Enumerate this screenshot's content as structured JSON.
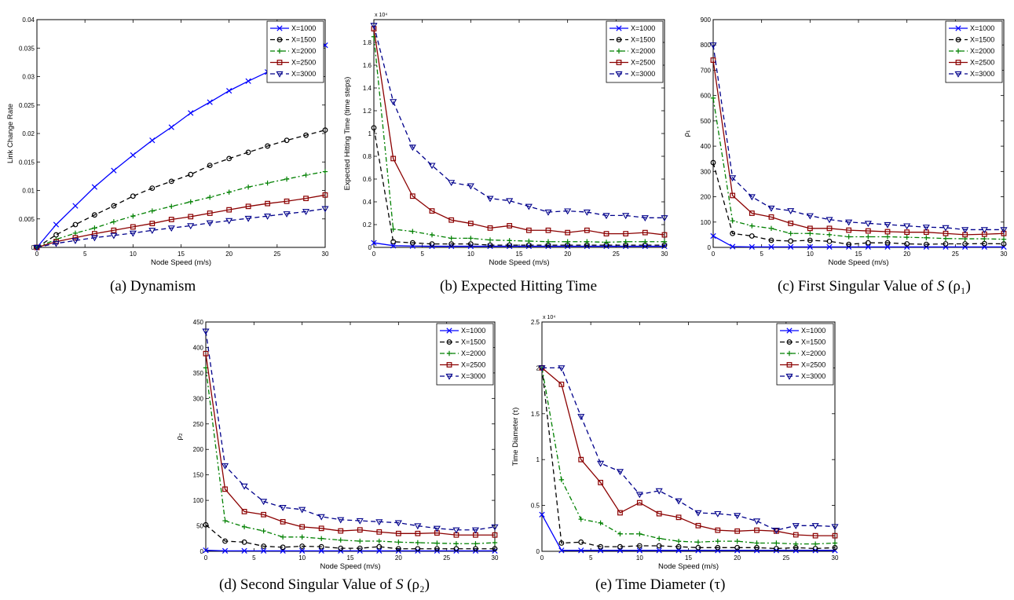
{
  "legend_labels": [
    "X=1000",
    "X=1500",
    "X=2000",
    "X=2500",
    "X=3000"
  ],
  "series_styles": [
    {
      "color": "#0000ff",
      "dash": "solid",
      "marker": "x"
    },
    {
      "color": "#000000",
      "dash": "dashed",
      "marker": "circle"
    },
    {
      "color": "#008000",
      "dash": "dashdot",
      "marker": "plus"
    },
    {
      "color": "#8b0000",
      "dash": "solid",
      "marker": "square"
    },
    {
      "color": "#00008b",
      "dash": "dashed",
      "marker": "triangle-down"
    }
  ],
  "captions": {
    "a": {
      "prefix": "(a)",
      "text": "Dynamism"
    },
    "b": {
      "prefix": "(b)",
      "text": "Expected Hitting Time"
    },
    "c": {
      "prefix": "(c)",
      "text": "First Singular Value of",
      "var": "S",
      "suffix": "(ρ₁)"
    },
    "d": {
      "prefix": "(d)",
      "text": "Second Singular Value of",
      "var": "S",
      "suffix": "(ρ₂)"
    },
    "e": {
      "prefix": "(e)",
      "text": "Time Diameter",
      "suffix": "(τ)"
    }
  },
  "chart_data": [
    {
      "id": "a",
      "type": "line",
      "title": "",
      "xlabel": "Node Speed (m/s)",
      "ylabel": "Link Change Rate",
      "xlim": [
        0,
        30
      ],
      "ylim": [
        0,
        0.04
      ],
      "xticks": [
        0,
        5,
        10,
        15,
        20,
        25,
        30
      ],
      "yticks": [
        0,
        0.005,
        0.01,
        0.015,
        0.02,
        0.025,
        0.03,
        0.035,
        0.04
      ],
      "ytick_labels": [
        "0",
        "0.005",
        "0.01",
        "0.015",
        "0.02",
        "0.025",
        "0.03",
        "0.035",
        "0.04"
      ],
      "exponent": "",
      "legend": "top-right",
      "x": [
        0,
        2,
        4,
        6,
        8,
        10,
        12,
        14,
        16,
        18,
        20,
        22,
        24,
        26,
        28,
        30
      ],
      "series": [
        {
          "name": "X=1000",
          "values": [
            0,
            0.004,
            0.0073,
            0.0106,
            0.0135,
            0.0162,
            0.0188,
            0.0211,
            0.0236,
            0.0255,
            0.0275,
            0.0292,
            0.0308,
            0.0324,
            0.034,
            0.0355
          ]
        },
        {
          "name": "X=1500",
          "values": [
            0,
            0.0022,
            0.004,
            0.0057,
            0.0073,
            0.009,
            0.0104,
            0.0116,
            0.0128,
            0.0144,
            0.0156,
            0.0167,
            0.0178,
            0.0188,
            0.0197,
            0.0206
          ]
        },
        {
          "name": "X=2000",
          "values": [
            0,
            0.0014,
            0.0025,
            0.0034,
            0.0045,
            0.0055,
            0.0064,
            0.0072,
            0.008,
            0.0088,
            0.0097,
            0.0106,
            0.0113,
            0.012,
            0.0127,
            0.0133
          ]
        },
        {
          "name": "X=2500",
          "values": [
            0,
            0.001,
            0.0017,
            0.0024,
            0.003,
            0.0036,
            0.0042,
            0.0049,
            0.0054,
            0.006,
            0.0066,
            0.0072,
            0.0077,
            0.0081,
            0.0086,
            0.0092
          ]
        },
        {
          "name": "X=3000",
          "values": [
            0,
            0.0007,
            0.0012,
            0.0017,
            0.0021,
            0.0025,
            0.003,
            0.0034,
            0.0038,
            0.0043,
            0.0047,
            0.0051,
            0.0055,
            0.0059,
            0.0063,
            0.0068
          ]
        }
      ]
    },
    {
      "id": "b",
      "type": "line",
      "title": "",
      "xlabel": "Node Speed (m/s)",
      "ylabel": "Expected Hitting Time (time steps)",
      "xlim": [
        0,
        30
      ],
      "ylim": [
        0,
        2.0
      ],
      "xticks": [
        0,
        5,
        10,
        15,
        20,
        25,
        30
      ],
      "yticks": [
        0,
        0.2,
        0.4,
        0.6,
        0.8,
        1.0,
        1.2,
        1.4,
        1.6,
        1.8
      ],
      "ytick_labels": [
        "0",
        "0.2",
        "0.4",
        "0.6",
        "0.8",
        "1",
        "1.2",
        "1.4",
        "1.6",
        "1.8"
      ],
      "exponent": "x 10⁴",
      "legend": "top-right",
      "x": [
        0,
        2,
        4,
        6,
        8,
        10,
        12,
        14,
        16,
        18,
        20,
        22,
        24,
        26,
        28,
        30
      ],
      "series": [
        {
          "name": "X=1000",
          "values": [
            0.04,
            0.015,
            0.012,
            0.01,
            0.01,
            0.01,
            0.01,
            0.01,
            0.01,
            0.01,
            0.01,
            0.01,
            0.01,
            0.01,
            0.01,
            0.01
          ]
        },
        {
          "name": "X=1500",
          "values": [
            1.05,
            0.05,
            0.04,
            0.03,
            0.03,
            0.03,
            0.02,
            0.02,
            0.02,
            0.02,
            0.02,
            0.02,
            0.02,
            0.02,
            0.02,
            0.02
          ]
        },
        {
          "name": "X=2000",
          "values": [
            1.85,
            0.16,
            0.14,
            0.11,
            0.08,
            0.08,
            0.065,
            0.06,
            0.055,
            0.05,
            0.05,
            0.05,
            0.045,
            0.05,
            0.05,
            0.05
          ]
        },
        {
          "name": "X=2500",
          "values": [
            1.92,
            0.78,
            0.45,
            0.32,
            0.24,
            0.21,
            0.17,
            0.19,
            0.15,
            0.15,
            0.13,
            0.15,
            0.12,
            0.12,
            0.13,
            0.11
          ]
        },
        {
          "name": "X=3000",
          "values": [
            1.95,
            1.28,
            0.88,
            0.72,
            0.57,
            0.54,
            0.43,
            0.41,
            0.36,
            0.31,
            0.32,
            0.31,
            0.28,
            0.28,
            0.26,
            0.26
          ]
        }
      ]
    },
    {
      "id": "c",
      "type": "line",
      "title": "",
      "xlabel": "Node Speed (m/s)",
      "ylabel": "ρ₁",
      "xlim": [
        0,
        30
      ],
      "ylim": [
        0,
        900
      ],
      "xticks": [
        0,
        5,
        10,
        15,
        20,
        25,
        30
      ],
      "yticks": [
        0,
        100,
        200,
        300,
        400,
        500,
        600,
        700,
        800,
        900
      ],
      "ytick_labels": [
        "0",
        "100",
        "200",
        "300",
        "400",
        "500",
        "600",
        "700",
        "800",
        "900"
      ],
      "exponent": "",
      "legend": "top-right",
      "x": [
        0,
        2,
        4,
        6,
        8,
        10,
        12,
        14,
        16,
        18,
        20,
        22,
        24,
        26,
        28,
        30
      ],
      "series": [
        {
          "name": "X=1000",
          "values": [
            45,
            3,
            2,
            2,
            2,
            2,
            2,
            2,
            2,
            2,
            2,
            2,
            2,
            2,
            2,
            2
          ]
        },
        {
          "name": "X=1500",
          "values": [
            335,
            55,
            45,
            28,
            25,
            28,
            24,
            12,
            18,
            18,
            14,
            12,
            14,
            14,
            15,
            14
          ]
        },
        {
          "name": "X=2000",
          "values": [
            590,
            105,
            85,
            75,
            55,
            55,
            50,
            42,
            42,
            42,
            40,
            38,
            35,
            34,
            34,
            32
          ]
        },
        {
          "name": "X=2500",
          "values": [
            740,
            205,
            135,
            120,
            95,
            75,
            75,
            68,
            65,
            62,
            60,
            60,
            55,
            50,
            52,
            55
          ]
        },
        {
          "name": "X=3000",
          "values": [
            800,
            275,
            200,
            155,
            145,
            125,
            110,
            100,
            95,
            90,
            85,
            80,
            78,
            70,
            70,
            70
          ]
        }
      ]
    },
    {
      "id": "d",
      "type": "line",
      "title": "",
      "xlabel": "Node Speed (m/s)",
      "ylabel": "ρ₂",
      "xlim": [
        0,
        30
      ],
      "ylim": [
        0,
        450
      ],
      "xticks": [
        0,
        5,
        10,
        15,
        20,
        25,
        30
      ],
      "yticks": [
        0,
        50,
        100,
        150,
        200,
        250,
        300,
        350,
        400,
        450
      ],
      "ytick_labels": [
        "0",
        "50",
        "100",
        "150",
        "200",
        "250",
        "300",
        "350",
        "400",
        "450"
      ],
      "exponent": "",
      "legend": "top-right",
      "x": [
        0,
        2,
        4,
        6,
        8,
        10,
        12,
        14,
        16,
        18,
        20,
        22,
        24,
        26,
        28,
        30
      ],
      "series": [
        {
          "name": "X=1000",
          "values": [
            2,
            1,
            1,
            1,
            1,
            1,
            1,
            1,
            1,
            1,
            1,
            1,
            1,
            1,
            1,
            1
          ]
        },
        {
          "name": "X=1500",
          "values": [
            52,
            20,
            18,
            10,
            8,
            10,
            9,
            6,
            6,
            9,
            5,
            5,
            5,
            5,
            5,
            5
          ]
        },
        {
          "name": "X=2000",
          "values": [
            360,
            60,
            48,
            40,
            28,
            28,
            25,
            22,
            20,
            20,
            18,
            17,
            16,
            15,
            15,
            17
          ]
        },
        {
          "name": "X=2500",
          "values": [
            388,
            122,
            78,
            72,
            58,
            48,
            45,
            40,
            42,
            38,
            35,
            35,
            36,
            32,
            32,
            32
          ]
        },
        {
          "name": "X=3000",
          "values": [
            432,
            168,
            128,
            98,
            86,
            82,
            68,
            62,
            60,
            58,
            56,
            50,
            45,
            42,
            42,
            48
          ]
        }
      ]
    },
    {
      "id": "e",
      "type": "line",
      "title": "",
      "xlabel": "Node Speed (m/s)",
      "ylabel": "Time Diameter (τ)",
      "xlim": [
        0,
        30
      ],
      "ylim": [
        0,
        2.5
      ],
      "xticks": [
        0,
        5,
        10,
        15,
        20,
        25,
        30
      ],
      "yticks": [
        0,
        0.5,
        1.0,
        1.5,
        2.0,
        2.5
      ],
      "ytick_labels": [
        "0",
        "0.5",
        "1",
        "1.5",
        "2",
        "2.5"
      ],
      "exponent": "x 10⁴",
      "legend": "top-right",
      "x": [
        0,
        2,
        4,
        6,
        8,
        10,
        12,
        14,
        16,
        18,
        20,
        22,
        24,
        26,
        28,
        30
      ],
      "series": [
        {
          "name": "X=1000",
          "values": [
            0.4,
            0.01,
            0.01,
            0.01,
            0.01,
            0.01,
            0.01,
            0.01,
            0.01,
            0.01,
            0.01,
            0.01,
            0.01,
            0.01,
            0.01,
            0.01
          ]
        },
        {
          "name": "X=1500",
          "values": [
            2.0,
            0.09,
            0.1,
            0.05,
            0.05,
            0.06,
            0.06,
            0.05,
            0.04,
            0.04,
            0.04,
            0.04,
            0.03,
            0.04,
            0.03,
            0.04
          ]
        },
        {
          "name": "X=2000",
          "values": [
            2.0,
            0.78,
            0.35,
            0.31,
            0.19,
            0.19,
            0.14,
            0.11,
            0.1,
            0.11,
            0.11,
            0.09,
            0.09,
            0.08,
            0.08,
            0.09
          ]
        },
        {
          "name": "X=2500",
          "values": [
            2.0,
            1.82,
            1.0,
            0.75,
            0.42,
            0.53,
            0.41,
            0.37,
            0.28,
            0.23,
            0.22,
            0.23,
            0.22,
            0.18,
            0.17,
            0.17
          ]
        },
        {
          "name": "X=3000",
          "values": [
            2.0,
            2.0,
            1.47,
            0.96,
            0.87,
            0.62,
            0.66,
            0.55,
            0.42,
            0.41,
            0.39,
            0.33,
            0.23,
            0.28,
            0.28,
            0.27
          ]
        }
      ]
    }
  ]
}
